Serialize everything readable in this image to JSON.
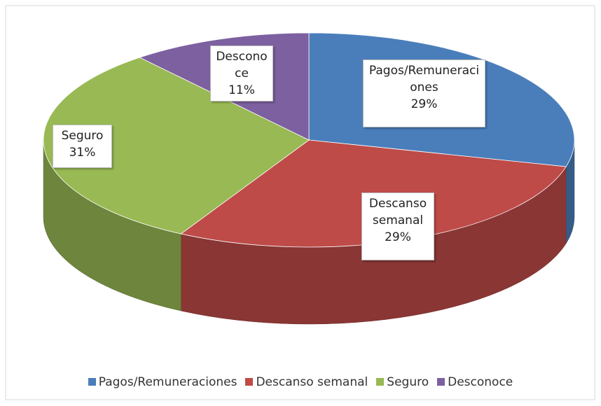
{
  "chart_data": {
    "type": "pie",
    "categories": [
      "Pagos/Remuneraciones",
      "Descanso semanal",
      "Seguro",
      "Desconoce"
    ],
    "values": [
      29,
      29,
      31,
      11
    ],
    "value_labels": [
      "29%",
      "29%",
      "31%",
      "11%"
    ],
    "colors": [
      "#4a7ebb",
      "#be4b48",
      "#98b954",
      "#7d60a0"
    ],
    "legend": "bottom"
  }
}
